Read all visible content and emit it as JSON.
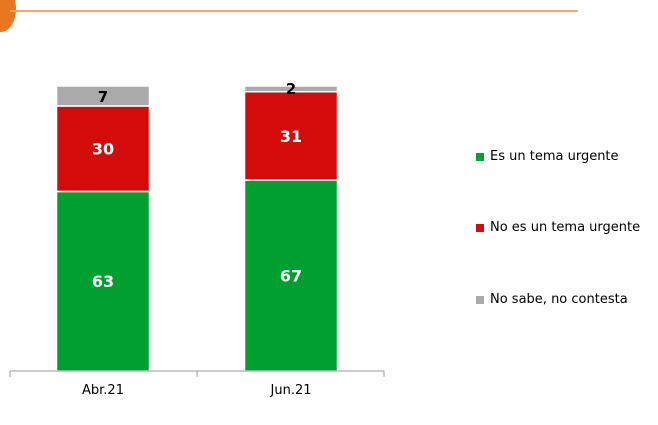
{
  "chart_data": {
    "type": "bar",
    "stacked": true,
    "categories": [
      "Abr.21",
      "Jun.21"
    ],
    "series": [
      {
        "name": "Es un tema urgente",
        "values": [
          63,
          67
        ],
        "color": "#00a030"
      },
      {
        "name": "No es un tema urgente",
        "values": [
          30,
          31
        ],
        "color": "#d30b0b"
      },
      {
        "name": "No sabe, no contesta",
        "values": [
          7,
          2
        ],
        "color": "#aaaaaa"
      }
    ],
    "title": "",
    "xlabel": "",
    "ylabel": "",
    "ylim": [
      0,
      100
    ],
    "grid": false,
    "legend": "right"
  },
  "colors": {
    "accent_rule": "#f3a868",
    "accent_shape": "#e87722",
    "axis": "#999999"
  }
}
